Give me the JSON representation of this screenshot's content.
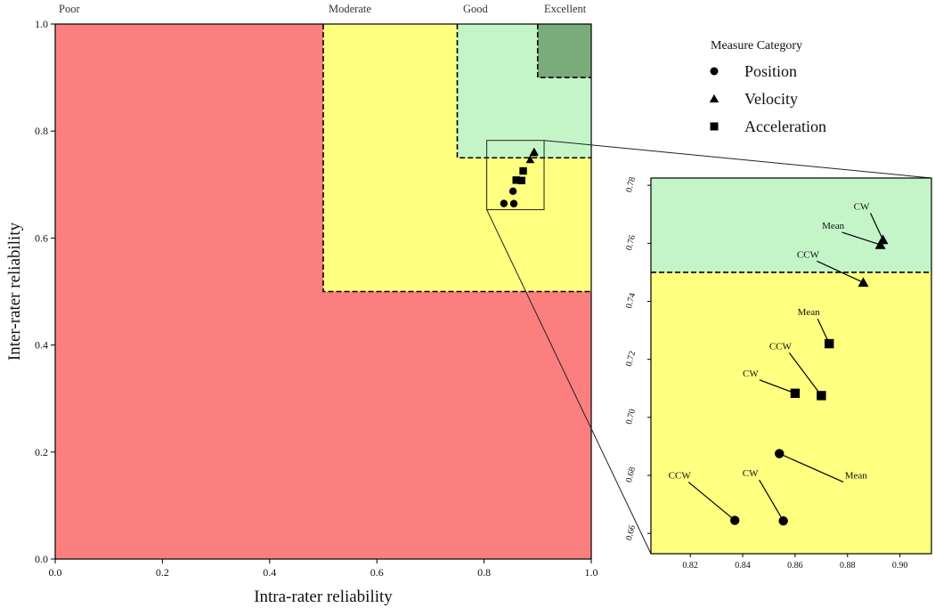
{
  "chart_data": {
    "type": "scatter",
    "xlabel": "Intra-rater reliability",
    "ylabel": "Inter-rater reliability",
    "xlim": [
      0,
      1
    ],
    "ylim": [
      0,
      1
    ],
    "x_ticks": [
      "0.0",
      "0.2",
      "0.4",
      "0.6",
      "0.8",
      "1.0"
    ],
    "y_ticks": [
      "0.0",
      "0.2",
      "0.4",
      "0.6",
      "0.8",
      "1.0"
    ],
    "grid": false,
    "zones": [
      {
        "label": "Poor",
        "from": 0.0,
        "color": "#fb7f7f"
      },
      {
        "label": "Moderate",
        "from": 0.5,
        "color": "#ffff80"
      },
      {
        "label": "Good",
        "from": 0.75,
        "color": "#c4f5c8"
      },
      {
        "label": "Excellent",
        "from": 0.9,
        "color": "#7aab7a"
      }
    ],
    "legend": {
      "title": "Measure Category",
      "placement": "top-right",
      "entries": [
        {
          "label": "Position",
          "marker": "circle"
        },
        {
          "label": "Velocity",
          "marker": "triangle"
        },
        {
          "label": "Acceleration",
          "marker": "square"
        }
      ]
    },
    "series": [
      {
        "category": "Position",
        "marker": "circle",
        "points": [
          {
            "label": "CCW",
            "x": 0.837,
            "y": 0.6645
          },
          {
            "label": "CW",
            "x": 0.8555,
            "y": 0.6643
          },
          {
            "label": "Mean",
            "x": 0.854,
            "y": 0.6875
          }
        ]
      },
      {
        "category": "Velocity",
        "marker": "triangle",
        "points": [
          {
            "label": "CCW",
            "x": 0.886,
            "y": 0.7465
          },
          {
            "label": "Mean",
            "x": 0.8925,
            "y": 0.7595
          },
          {
            "label": "CW",
            "x": 0.8935,
            "y": 0.7612
          }
        ]
      },
      {
        "category": "Acceleration",
        "marker": "square",
        "points": [
          {
            "label": "CW",
            "x": 0.86,
            "y": 0.7083
          },
          {
            "label": "CCW",
            "x": 0.87,
            "y": 0.7075
          },
          {
            "label": "Mean",
            "x": 0.873,
            "y": 0.7254
          }
        ]
      }
    ],
    "inset": {
      "xlim": [
        0.805,
        0.912
      ],
      "ylim": [
        0.653,
        0.7825
      ],
      "x_ticks": [
        "0.82",
        "0.84",
        "0.86",
        "0.88",
        "0.90"
      ],
      "y_ticks": [
        "0.66",
        "0.68",
        "0.70",
        "0.72",
        "0.74",
        "0.76",
        "0.78"
      ],
      "boundary_y": 0.75
    }
  }
}
